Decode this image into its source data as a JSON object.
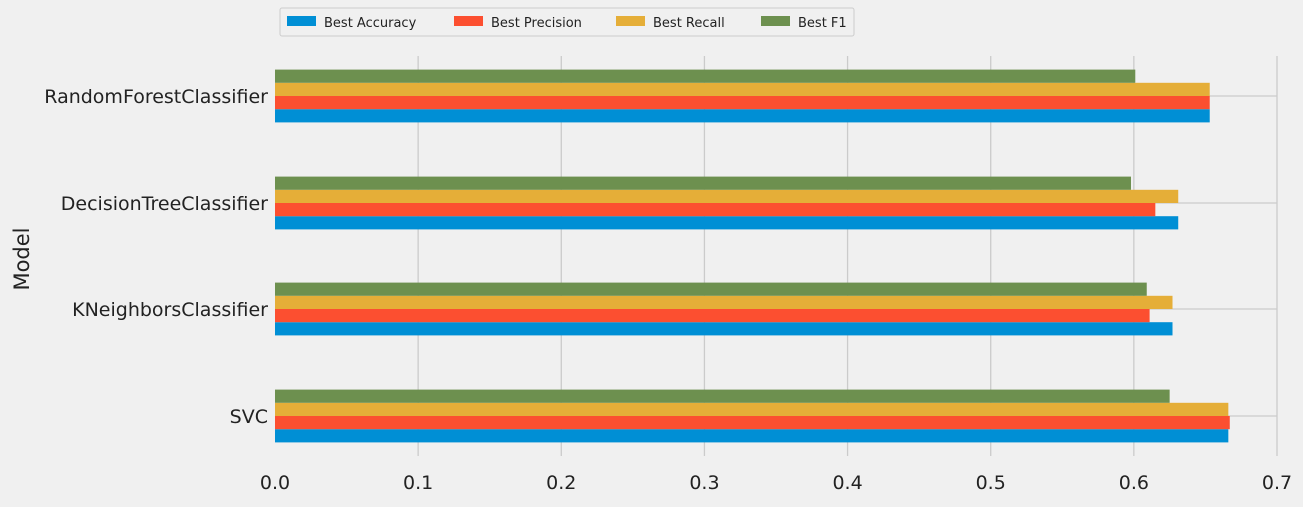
{
  "chart_data": {
    "type": "bar",
    "orientation": "horizontal",
    "categories": [
      "SVC",
      "KNeighborsClassifier",
      "DecisionTreeClassifier",
      "RandomForestClassifier"
    ],
    "series": [
      {
        "name": "Best Accuracy",
        "color": "#008fd5",
        "values": [
          0.666,
          0.627,
          0.631,
          0.653
        ]
      },
      {
        "name": "Best Precision",
        "color": "#fc4f30",
        "values": [
          0.667,
          0.611,
          0.615,
          0.653
        ]
      },
      {
        "name": "Best Recall",
        "color": "#e5ae38",
        "values": [
          0.666,
          0.627,
          0.631,
          0.653
        ]
      },
      {
        "name": "Best F1",
        "color": "#6d904f",
        "values": [
          0.625,
          0.609,
          0.598,
          0.601
        ]
      }
    ],
    "xlim": [
      0,
      0.7
    ],
    "xticks": [
      0.0,
      0.1,
      0.2,
      0.3,
      0.4,
      0.5,
      0.6,
      0.7
    ],
    "xtick_labels": [
      "0.0",
      "0.1",
      "0.2",
      "0.3",
      "0.4",
      "0.5",
      "0.6",
      "0.7"
    ],
    "xlabel": "",
    "ylabel": "Model",
    "grid": true,
    "legend_position": "top-left, horizontal"
  }
}
